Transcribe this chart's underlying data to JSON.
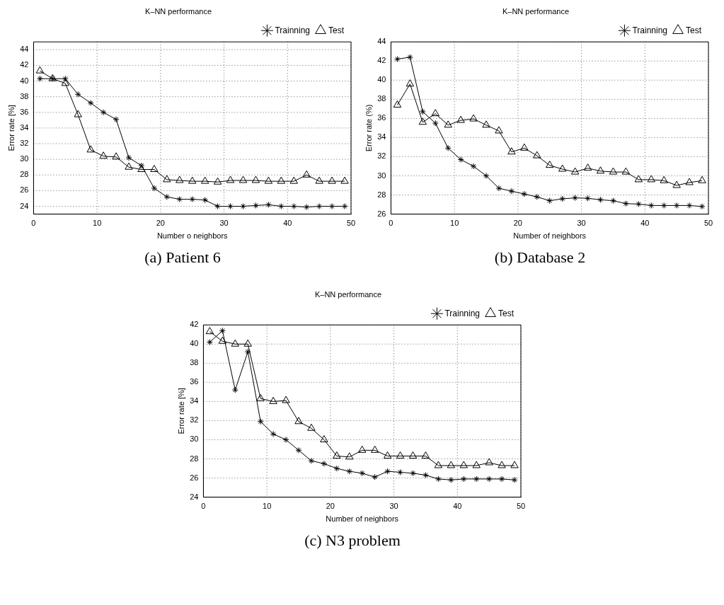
{
  "chart_data": [
    {
      "type": "line",
      "title": "K–NN performance",
      "xlabel": "Number o neighbors",
      "ylabel": "Error rate [%]",
      "annotations": [
        "(a) Patient 6"
      ],
      "x": [
        1,
        3,
        5,
        7,
        9,
        11,
        13,
        15,
        17,
        19,
        21,
        23,
        25,
        27,
        29,
        31,
        33,
        35,
        37,
        39,
        41,
        43,
        45,
        47,
        49
      ],
      "series": [
        {
          "name": "Trainning",
          "color": "#000000",
          "marker": "cross",
          "values": [
            40.3,
            40.3,
            40.3,
            38.3,
            37.2,
            36,
            35.1,
            30.2,
            29.2,
            26.3,
            25.2,
            24.9,
            24.9,
            24.8,
            24,
            24,
            24,
            24.1,
            24.2,
            24,
            24,
            23.9,
            24,
            24,
            24
          ]
        },
        {
          "name": "Test",
          "color": "#000000",
          "marker": "triangle",
          "values": [
            41.3,
            40.3,
            39.7,
            35.7,
            31.2,
            30.4,
            30.3,
            29,
            28.7,
            28.7,
            27.4,
            27.3,
            27.2,
            27.2,
            27.1,
            27.3,
            27.3,
            27.3,
            27.2,
            27.2,
            27.2,
            28,
            27.2,
            27.2,
            27.2
          ]
        }
      ],
      "xlim": [
        0,
        50
      ],
      "xticks": [
        0,
        10,
        20,
        30,
        40,
        50
      ],
      "ylim": [
        23,
        45
      ],
      "yticks": [
        24,
        26,
        28,
        30,
        32,
        34,
        36,
        38,
        40,
        42,
        44
      ],
      "grid": true,
      "legend": "top right",
      "line_style": "solid"
    },
    {
      "type": "line",
      "title": "K–NN performance",
      "xlabel": "Number of neighbors",
      "ylabel": "Error rate (%)",
      "annotations": [
        "(b) Database 2"
      ],
      "x": [
        1,
        3,
        5,
        7,
        9,
        11,
        13,
        15,
        17,
        19,
        21,
        23,
        25,
        27,
        29,
        31,
        33,
        35,
        37,
        39,
        41,
        43,
        45,
        47,
        49
      ],
      "series": [
        {
          "name": "Trainning",
          "color": "#000000",
          "marker": "cross",
          "values": [
            42.2,
            42.4,
            36.7,
            35.5,
            32.9,
            31.7,
            31,
            30,
            28.7,
            28.4,
            28.1,
            27.8,
            27.4,
            27.6,
            27.7,
            27.65,
            27.5,
            27.4,
            27.1,
            27.05,
            26.9,
            26.9,
            26.9,
            26.9,
            26.8
          ]
        },
        {
          "name": "Test",
          "color": "#000000",
          "marker": "triangle",
          "values": [
            37.4,
            39.6,
            35.6,
            36.5,
            35.3,
            35.8,
            35.95,
            35.3,
            34.7,
            32.5,
            32.9,
            32.1,
            31.1,
            30.7,
            30.4,
            30.8,
            30.5,
            30.4,
            30.4,
            29.6,
            29.6,
            29.5,
            29,
            29.3,
            29.5
          ]
        }
      ],
      "xlim": [
        0,
        50
      ],
      "xticks": [
        0,
        10,
        20,
        30,
        40,
        50
      ],
      "ylim": [
        26,
        44
      ],
      "yticks": [
        26,
        28,
        30,
        32,
        34,
        36,
        38,
        40,
        42,
        44
      ],
      "grid": true,
      "legend": "top right",
      "line_style": "solid"
    },
    {
      "type": "line",
      "title": "K–NN performance",
      "xlabel": "Number of neighbors",
      "ylabel": "Error rate [%]",
      "annotations": [
        "(c) N3 problem"
      ],
      "x": [
        1,
        3,
        5,
        7,
        9,
        11,
        13,
        15,
        17,
        19,
        21,
        23,
        25,
        27,
        29,
        31,
        33,
        35,
        37,
        39,
        41,
        43,
        45,
        47,
        49
      ],
      "series": [
        {
          "name": "Trainning",
          "color": "#000000",
          "marker": "cross",
          "values": [
            40.2,
            41.4,
            35.2,
            39.2,
            31.9,
            30.6,
            30,
            28.9,
            27.8,
            27.5,
            27,
            26.7,
            26.5,
            26.1,
            26.7,
            26.6,
            26.5,
            26.3,
            25.9,
            25.8,
            25.9,
            25.9,
            25.9,
            25.9,
            25.8
          ]
        },
        {
          "name": "Test",
          "color": "#000000",
          "marker": "triangle",
          "values": [
            41.3,
            40.3,
            40,
            40,
            34.3,
            34,
            34.1,
            31.9,
            31.2,
            30,
            28.3,
            28.2,
            28.9,
            28.9,
            28.3,
            28.3,
            28.3,
            28.3,
            27.3,
            27.3,
            27.3,
            27.3,
            27.6,
            27.3,
            27.3
          ]
        }
      ],
      "xlim": [
        0,
        50
      ],
      "xticks": [
        0,
        10,
        20,
        30,
        40,
        50
      ],
      "ylim": [
        24,
        42
      ],
      "yticks": [
        24,
        26,
        28,
        30,
        32,
        34,
        36,
        38,
        40,
        42
      ],
      "grid": true,
      "legend": "top right",
      "line_style": "solid"
    }
  ]
}
